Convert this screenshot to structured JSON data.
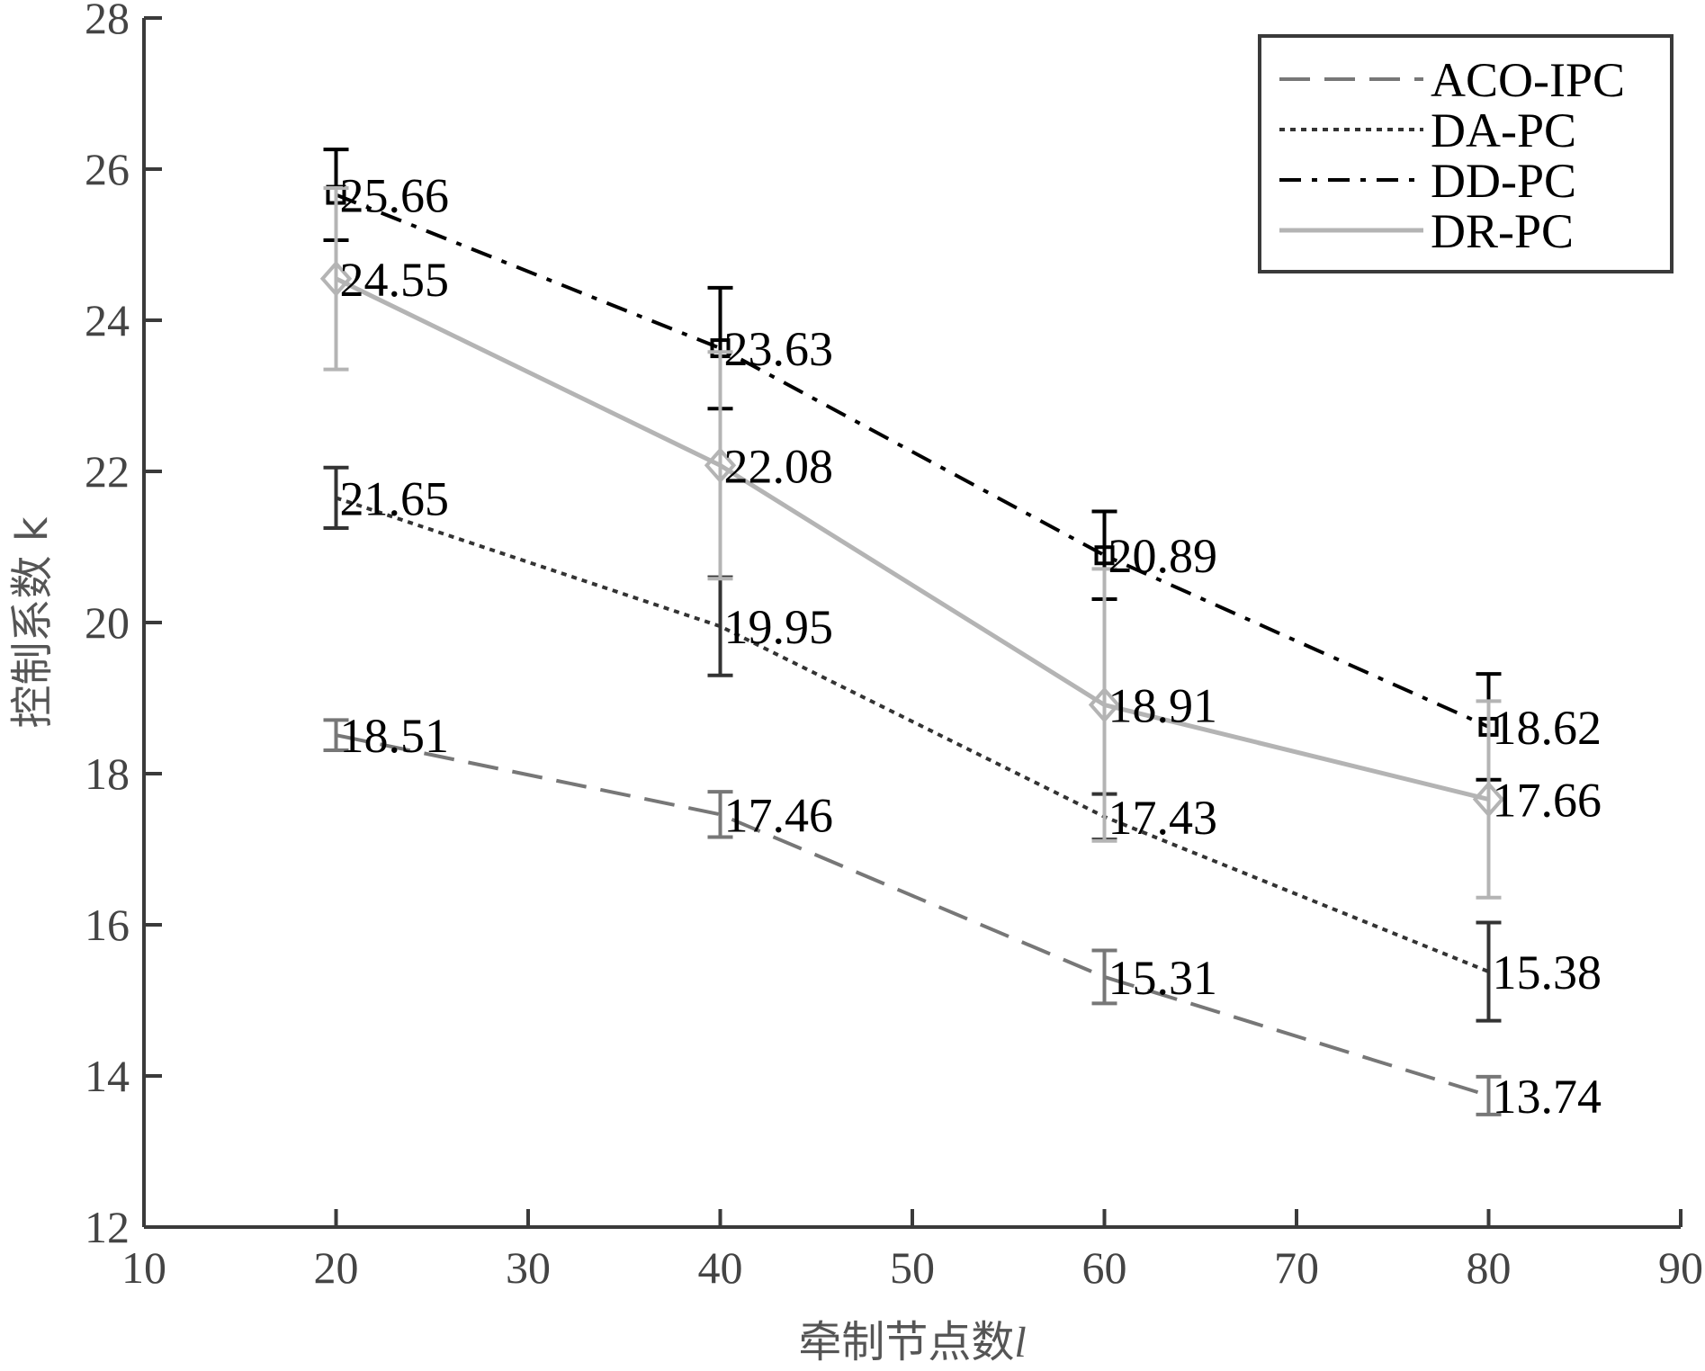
{
  "chart_data": {
    "type": "line",
    "title": "",
    "xlabel": "牵制节点数",
    "xlabel_var": "l",
    "ylabel": "控制系数 k",
    "xlim": [
      10,
      90
    ],
    "ylim": [
      12,
      28
    ],
    "xticks": [
      10,
      20,
      30,
      40,
      50,
      60,
      70,
      80,
      90
    ],
    "yticks": [
      12,
      14,
      16,
      18,
      20,
      22,
      24,
      26,
      28
    ],
    "x": [
      20,
      40,
      60,
      80
    ],
    "grid": false,
    "legend_position": "top-right",
    "series": [
      {
        "name": "ACO-IPC",
        "values": [
          18.51,
          17.46,
          15.31,
          13.74
        ],
        "labels": [
          "18.51",
          "17.46",
          "15.31",
          "13.74"
        ],
        "err": [
          0.2,
          0.3,
          0.35,
          0.25
        ],
        "style": "dashed",
        "color": "#777777",
        "marker": "none"
      },
      {
        "name": "DA-PC",
        "values": [
          21.65,
          19.95,
          17.43,
          15.38
        ],
        "labels": [
          "21.65",
          "19.95",
          "17.43",
          "15.38"
        ],
        "err": [
          0.4,
          0.65,
          0.3,
          0.65
        ],
        "style": "dotted",
        "color": "#333333",
        "marker": "none"
      },
      {
        "name": "DD-PC",
        "values": [
          25.66,
          23.63,
          20.89,
          18.62
        ],
        "labels": [
          "25.66",
          "23.63",
          "20.89",
          "18.62"
        ],
        "err": [
          0.6,
          0.8,
          0.58,
          0.7
        ],
        "style": "dashdot",
        "color": "#000000",
        "marker": "square"
      },
      {
        "name": "DR-PC",
        "values": [
          24.55,
          22.08,
          18.91,
          17.66
        ],
        "labels": [
          "24.55",
          "22.08",
          "18.91",
          "17.66"
        ],
        "err": [
          1.2,
          1.5,
          1.8,
          1.3
        ],
        "style": "solid",
        "color": "#b4b4b4",
        "marker": "diamond"
      }
    ]
  }
}
